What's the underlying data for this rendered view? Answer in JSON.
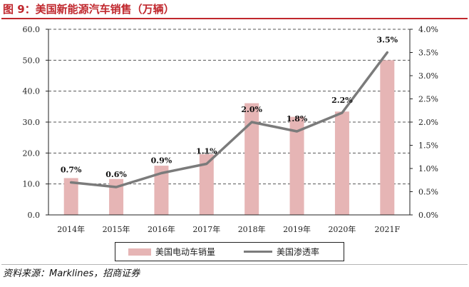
{
  "figure": {
    "title": "图 9：美国新能源汽车销售（万辆）",
    "source": "资料来源：Marklines，招商证券"
  },
  "colors": {
    "bar": "#e6b5b5",
    "line": "#7b7b7b",
    "title": "#c0272d"
  },
  "chart_data": {
    "type": "bar+line",
    "title": "美国新能源汽车销售（万辆）",
    "categories": [
      "2014年",
      "2015年",
      "2016年",
      "2017年",
      "2018年",
      "2019年",
      "2020年",
      "2021F"
    ],
    "series": [
      {
        "name": "美国电动车销量",
        "type": "bar",
        "axis": "left",
        "values": [
          11.9,
          11.6,
          15.9,
          19.6,
          36.1,
          31.7,
          33.4,
          50.0
        ]
      },
      {
        "name": "美国渗透率",
        "type": "line",
        "axis": "right",
        "values": [
          0.7,
          0.6,
          0.9,
          1.1,
          2.0,
          1.8,
          2.2,
          3.5
        ],
        "labels": [
          "0.7%",
          "0.6%",
          "0.9%",
          "1.1%",
          "2.0%",
          "1.8%",
          "2.2%",
          "3.5%"
        ]
      }
    ],
    "y_left": {
      "min": 0,
      "max": 60,
      "step": 10,
      "ticks": [
        "0.0",
        "10.0",
        "20.0",
        "30.0",
        "40.0",
        "50.0",
        "60.0"
      ]
    },
    "y_right": {
      "min": 0,
      "max": 4,
      "step": 0.5,
      "ticks": [
        "0.0%",
        "0.5%",
        "1.0%",
        "1.5%",
        "2.0%",
        "2.5%",
        "3.0%",
        "3.5%",
        "4.0%"
      ]
    },
    "grid": "horizontal dashed",
    "legend_position": "bottom-center"
  }
}
